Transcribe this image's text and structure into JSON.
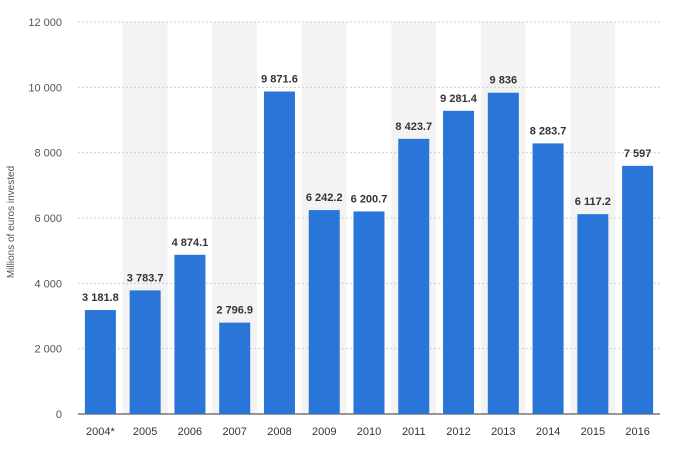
{
  "chart_data": {
    "type": "bar",
    "categories": [
      "2004*",
      "2005",
      "2006",
      "2007",
      "2008",
      "2009",
      "2010",
      "2011",
      "2012",
      "2013",
      "2014",
      "2015",
      "2016"
    ],
    "values": [
      3181.8,
      3783.7,
      4874.1,
      2796.9,
      9871.6,
      6242.2,
      6200.7,
      8423.7,
      9281.4,
      9836,
      8283.7,
      6117.2,
      7597
    ],
    "value_labels": [
      "3 181.8",
      "3 783.7",
      "4 874.1",
      "2 796.9",
      "9 871.6",
      "6 242.2",
      "6 200.7",
      "8 423.7",
      "9 281.4",
      "9 836",
      "8 283.7",
      "6 117.2",
      "7 597"
    ],
    "ylabel": "Millions of euros invested",
    "ylim": [
      0,
      12000
    ],
    "yticks": [
      0,
      2000,
      4000,
      6000,
      8000,
      10000,
      12000
    ],
    "ytick_labels": [
      "0",
      "2 000",
      "4 000",
      "6 000",
      "8 000",
      "10 000",
      "12 000"
    ],
    "grid": true,
    "bar_color": "#2a75d8",
    "alt_band_color": "#f3f3f3"
  }
}
